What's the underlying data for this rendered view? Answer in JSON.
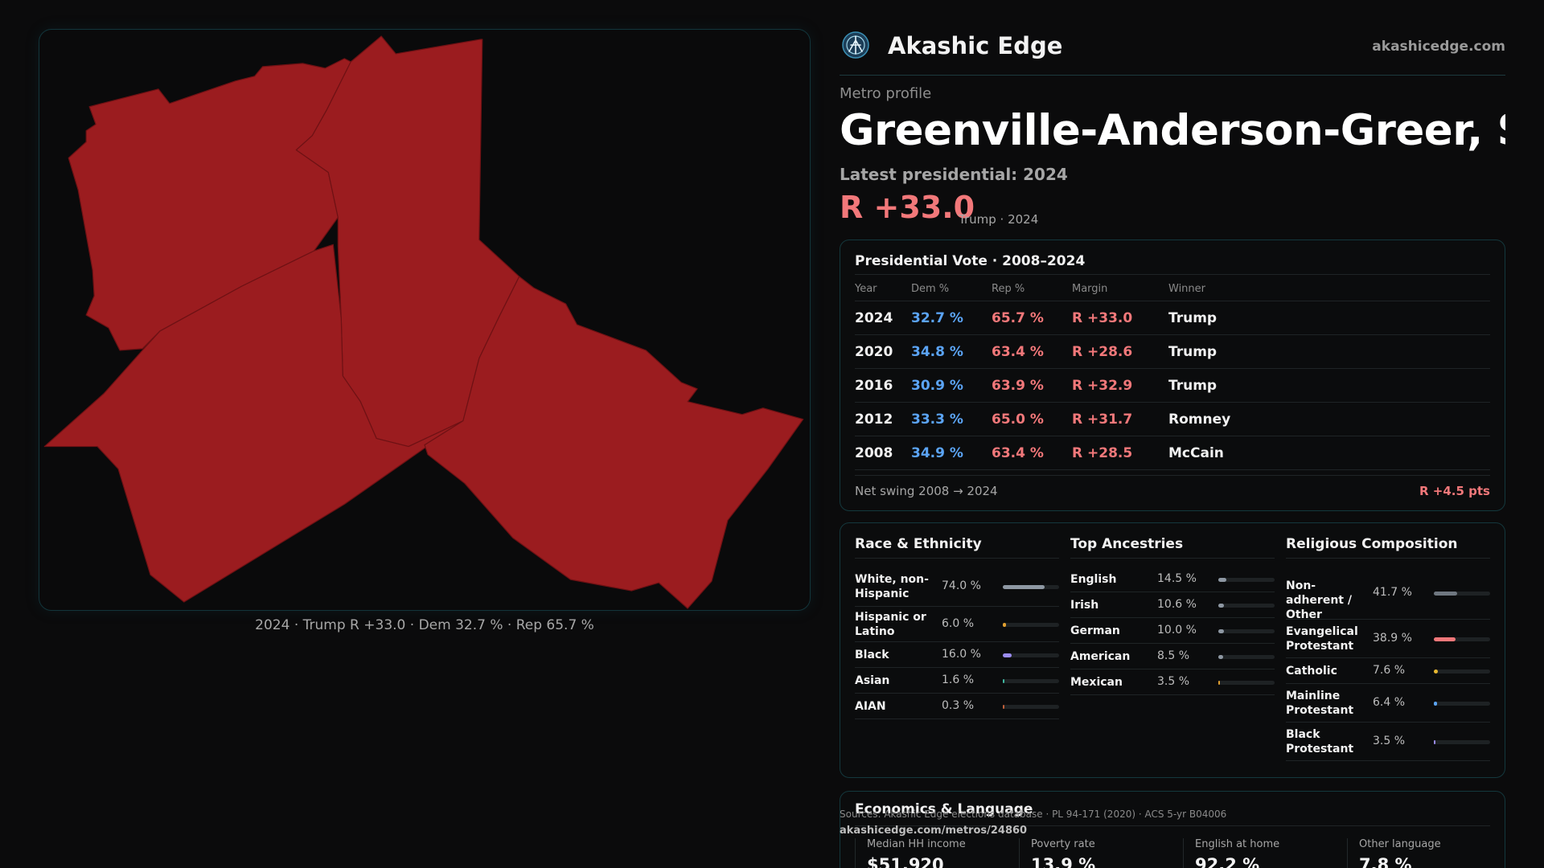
{
  "brand": {
    "name": "Akashic Edge",
    "url": "akashicedge.com"
  },
  "colors": {
    "dem": "#5ba4f5",
    "rep": "#f2787a",
    "map_fill": "#9b1c1f",
    "border_accent": "#14383d"
  },
  "map": {
    "caption": "2024 · Trump R +33.0 · Dem 32.7 % · Rep 65.7 %"
  },
  "profile": {
    "eyebrow": "Metro profile",
    "title": "Greenville-Anderson-Greer, SC",
    "latest_label": "Latest presidential: 2024",
    "margin": "R +33.0",
    "margin_sub": "Trump · 2024"
  },
  "vote": {
    "title": "Presidential Vote · 2008–2024",
    "headers": {
      "year": "Year",
      "dem": "Dem %",
      "rep": "Rep %",
      "margin": "Margin",
      "winner": "Winner"
    },
    "rows": [
      {
        "year": "2024",
        "dem": "32.7 %",
        "rep": "65.7 %",
        "margin": "R +33.0",
        "winner": "Trump"
      },
      {
        "year": "2020",
        "dem": "34.8 %",
        "rep": "63.4 %",
        "margin": "R +28.6",
        "winner": "Trump"
      },
      {
        "year": "2016",
        "dem": "30.9 %",
        "rep": "63.9 %",
        "margin": "R +32.9",
        "winner": "Trump"
      },
      {
        "year": "2012",
        "dem": "33.3 %",
        "rep": "65.0 %",
        "margin": "R +31.7",
        "winner": "Romney"
      },
      {
        "year": "2008",
        "dem": "34.9 %",
        "rep": "63.4 %",
        "margin": "R +28.5",
        "winner": "McCain"
      }
    ],
    "swing_label": "Net swing 2008 → 2024",
    "swing_value": "R +4.5 pts"
  },
  "race": {
    "title": "Race & Ethnicity",
    "items": [
      {
        "name": "White, non-Hispanic",
        "pct": "74.0 %",
        "value": 0.74,
        "color": "#8e98a3"
      },
      {
        "name": "Hispanic or Latino",
        "pct": "6.0 %",
        "value": 0.06,
        "color": "#e0a030"
      },
      {
        "name": "Black",
        "pct": "16.0 %",
        "value": 0.16,
        "color": "#9b8cf0"
      },
      {
        "name": "Asian",
        "pct": "1.6 %",
        "value": 0.016,
        "color": "#3fb8a0"
      },
      {
        "name": "AIAN",
        "pct": "0.3 %",
        "value": 0.003,
        "color": "#c0603a"
      }
    ]
  },
  "ancestry": {
    "title": "Top Ancestries",
    "items": [
      {
        "name": "English",
        "pct": "14.5 %",
        "value": 0.145,
        "color": "#8e98a3"
      },
      {
        "name": "Irish",
        "pct": "10.6 %",
        "value": 0.106,
        "color": "#8e98a3"
      },
      {
        "name": "German",
        "pct": "10.0 %",
        "value": 0.1,
        "color": "#8e98a3"
      },
      {
        "name": "American",
        "pct": "8.5 %",
        "value": 0.085,
        "color": "#8e98a3"
      },
      {
        "name": "Mexican",
        "pct": "3.5 %",
        "value": 0.035,
        "color": "#e0a030"
      }
    ]
  },
  "religion": {
    "title": "Religious Composition",
    "items": [
      {
        "name": "Non-adherent / Other",
        "pct": "41.7 %",
        "value": 0.417,
        "color": "#6f7780"
      },
      {
        "name": "Evangelical Protestant",
        "pct": "38.9 %",
        "value": 0.389,
        "color": "#f2787a"
      },
      {
        "name": "Catholic",
        "pct": "7.6 %",
        "value": 0.076,
        "color": "#e8b830"
      },
      {
        "name": "Mainline Protestant",
        "pct": "6.4 %",
        "value": 0.064,
        "color": "#5ba4f5"
      },
      {
        "name": "Black Protestant",
        "pct": "3.5 %",
        "value": 0.035,
        "color": "#9b8cf0"
      }
    ]
  },
  "economics": {
    "title": "Economics & Language",
    "stats": [
      {
        "label": "Median HH income",
        "value": "$51,920"
      },
      {
        "label": "Poverty rate",
        "value": "13.9 %"
      },
      {
        "label": "English at home",
        "value": "92.2 %"
      },
      {
        "label": "Other language",
        "value": "7.8 %"
      }
    ]
  },
  "footer": {
    "sources": "Sources: Akashic Edge elections database · PL 94-171 (2020) · ACS 5-yr B04006",
    "permalink": "akashicedge.com/metros/24860"
  }
}
